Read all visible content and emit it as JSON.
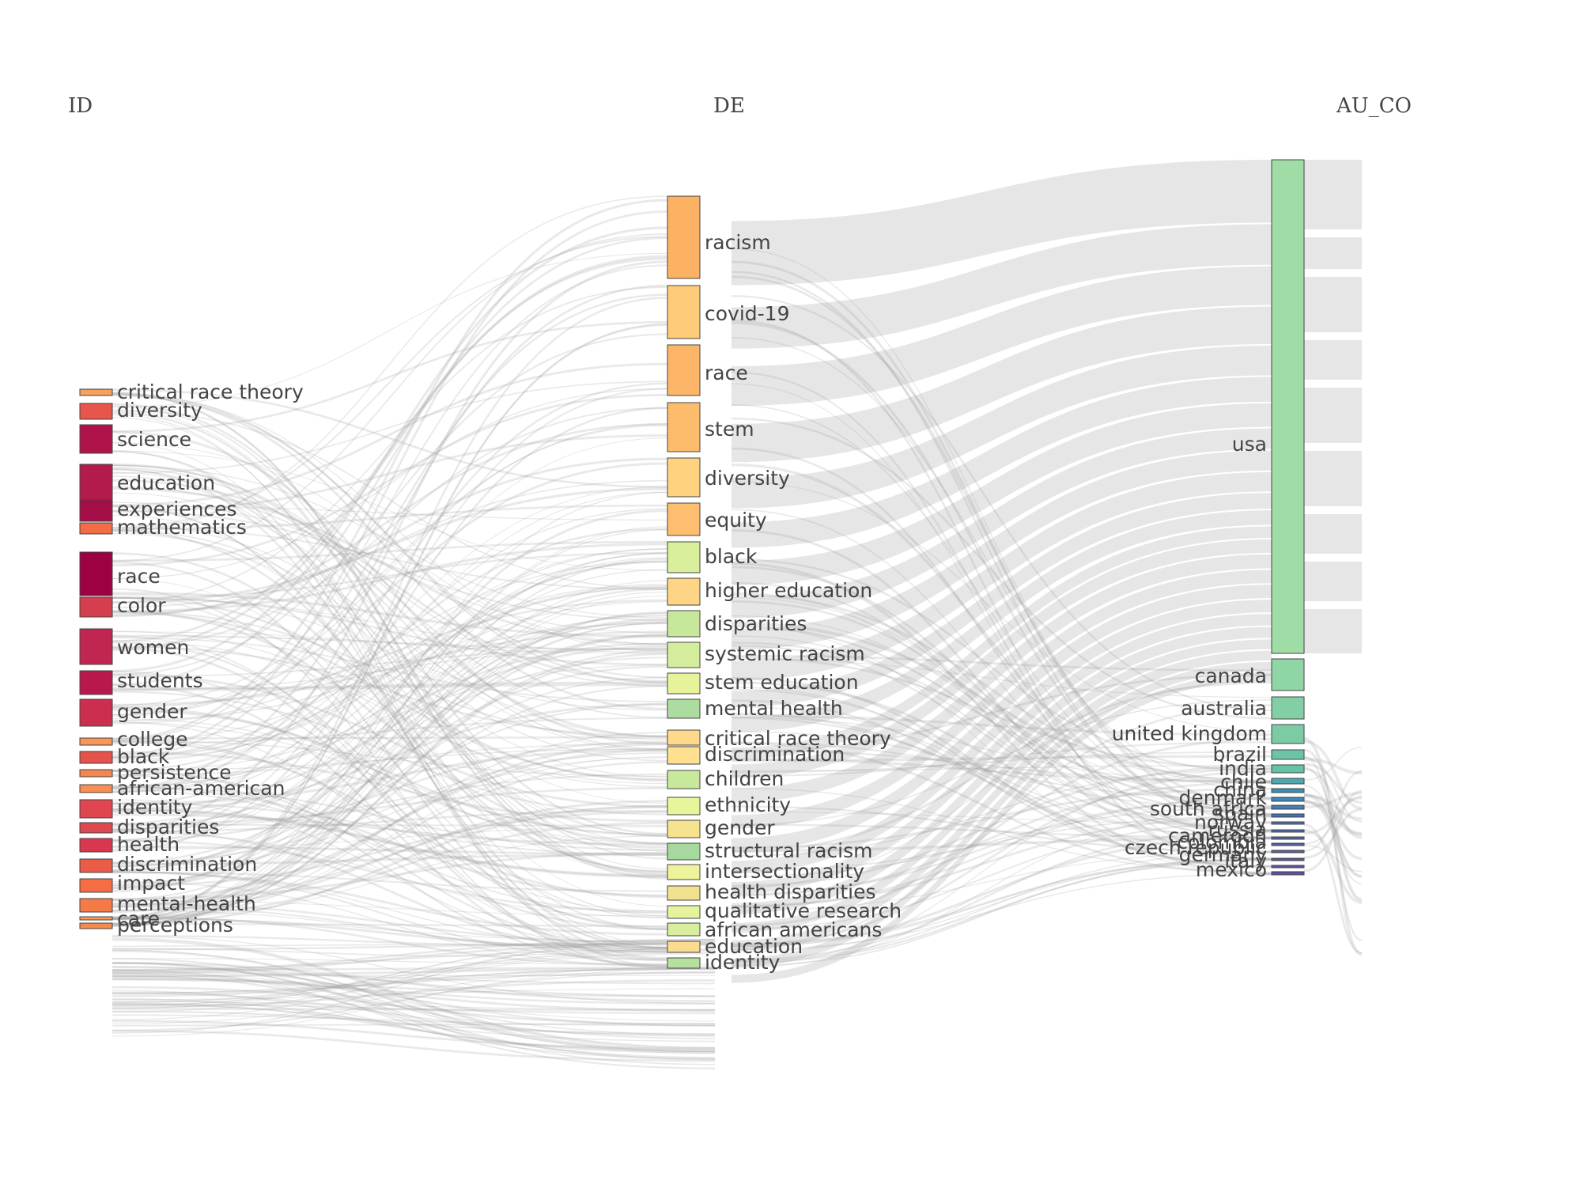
{
  "columns": [
    {
      "key": "ID",
      "title": "ID"
    },
    {
      "key": "DE",
      "title": "DE"
    },
    {
      "key": "AU_CO",
      "title": "AU_CO"
    }
  ],
  "nodes": {
    "ID": [
      {
        "label": "critical race theory",
        "color": "#f6a15e"
      },
      {
        "label": "diversity",
        "color": "#e8554a"
      },
      {
        "label": "science",
        "color": "#b0134a"
      },
      {
        "label": "education",
        "color": "#b31b4b"
      },
      {
        "label": "experiences",
        "color": "#a40d45"
      },
      {
        "label": "mathematics",
        "color": "#f26c45"
      },
      {
        "label": "race",
        "color": "#9e0142"
      },
      {
        "label": "color",
        "color": "#d53e4f"
      },
      {
        "label": "women",
        "color": "#c12651"
      },
      {
        "label": "students",
        "color": "#b8184b"
      },
      {
        "label": "gender",
        "color": "#cc2e50"
      },
      {
        "label": "college",
        "color": "#f89757"
      },
      {
        "label": "black",
        "color": "#e4524b"
      },
      {
        "label": "persistence",
        "color": "#f5864f"
      },
      {
        "label": "african-american",
        "color": "#f78f53"
      },
      {
        "label": "identity",
        "color": "#e0464f"
      },
      {
        "label": "disparities",
        "color": "#dd4950"
      },
      {
        "label": "health",
        "color": "#d9374f"
      },
      {
        "label": "discrimination",
        "color": "#e95c47"
      },
      {
        "label": "impact",
        "color": "#f46d43"
      },
      {
        "label": "mental-health",
        "color": "#f47a46"
      },
      {
        "label": "care",
        "color": "#fb9c59"
      },
      {
        "label": "perceptions",
        "color": "#f68a4c"
      }
    ],
    "DE": [
      {
        "label": "racism",
        "color": "#fdb163"
      },
      {
        "label": "covid-19",
        "color": "#fecb78"
      },
      {
        "label": "race",
        "color": "#fdb668"
      },
      {
        "label": "stem",
        "color": "#fdbb6c"
      },
      {
        "label": "diversity",
        "color": "#fed27f"
      },
      {
        "label": "equity",
        "color": "#fdbf6f"
      },
      {
        "label": "black",
        "color": "#d9ef9b"
      },
      {
        "label": "higher education",
        "color": "#fed585"
      },
      {
        "label": "disparities",
        "color": "#c7e89b"
      },
      {
        "label": "systemic racism",
        "color": "#d3ed9c"
      },
      {
        "label": "stem education",
        "color": "#e8f29a"
      },
      {
        "label": "mental health",
        "color": "#acdc9f"
      },
      {
        "label": "critical race theory",
        "color": "#fed98b"
      },
      {
        "label": "discrimination",
        "color": "#fee090"
      },
      {
        "label": "children",
        "color": "#c8e99b"
      },
      {
        "label": "ethnicity",
        "color": "#e7f59b"
      },
      {
        "label": "gender",
        "color": "#f7e28f"
      },
      {
        "label": "structural racism",
        "color": "#a6d99d"
      },
      {
        "label": "intersectionality",
        "color": "#eef29a"
      },
      {
        "label": "health disparities",
        "color": "#f1e18e"
      },
      {
        "label": "qualitative research",
        "color": "#e4f39c"
      },
      {
        "label": "african americans",
        "color": "#d8ee9c"
      },
      {
        "label": "education",
        "color": "#fbdb8d"
      },
      {
        "label": "identity",
        "color": "#b5e0a0"
      }
    ],
    "AU_CO": [
      {
        "label": "usa",
        "color": "#a0dca5"
      },
      {
        "label": "canada",
        "color": "#90d5a5"
      },
      {
        "label": "australia",
        "color": "#82cfa5"
      },
      {
        "label": "united kingdom",
        "color": "#7ccba4"
      },
      {
        "label": "brazil",
        "color": "#6cc3a5"
      },
      {
        "label": "india",
        "color": "#66c2a5"
      },
      {
        "label": "chile",
        "color": "#4fa8b0"
      },
      {
        "label": "china",
        "color": "#3a8fb5"
      },
      {
        "label": "denmark",
        "color": "#3d86b8"
      },
      {
        "label": "south africa",
        "color": "#4a7bb3"
      },
      {
        "label": "spain",
        "color": "#4670ae"
      },
      {
        "label": "norway",
        "color": "#4a6fae"
      },
      {
        "label": "russia",
        "color": "#4d6aa9"
      },
      {
        "label": "cameroon",
        "color": "#4f63a5"
      },
      {
        "label": "colombia",
        "color": "#5160a3"
      },
      {
        "label": "czech republic",
        "color": "#535da1"
      },
      {
        "label": "germany",
        "color": "#55599f"
      },
      {
        "label": "italy",
        "color": "#57569d"
      },
      {
        "label": "mexico",
        "color": "#5e4fa2"
      }
    ]
  }
}
